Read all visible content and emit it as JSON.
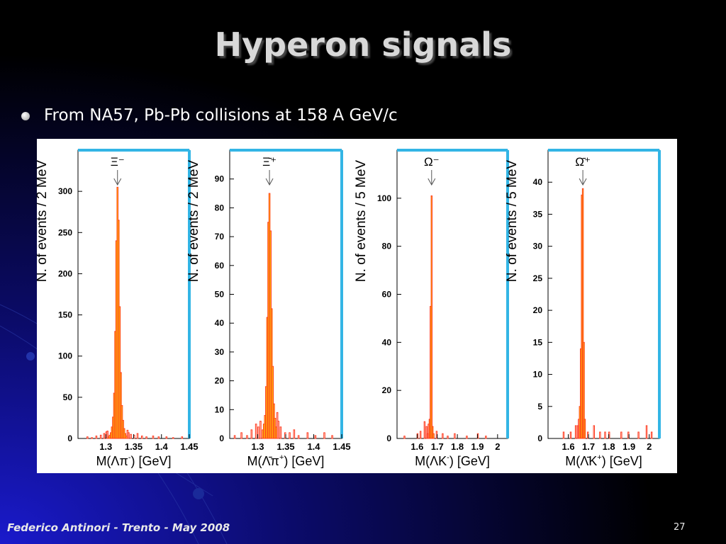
{
  "slide": {
    "title": "Hyperon signals",
    "bullet": "From NA57, Pb-Pb collisions at 158 A GeV/c",
    "footer": "Federico Antinori - Trento - May 2008",
    "page_number": "27"
  },
  "colors": {
    "background_top": "#000000",
    "background_glow": "#1a1acc",
    "histogram_fill": "#ffff00",
    "histogram_line": "#ff3b1f",
    "frame_accent": "#33b5e5"
  },
  "chart_data": [
    {
      "type": "histogram",
      "peak_label": "Ξ⁻",
      "ylabel": "N. of events / 2 MeV",
      "xlabel_parts": [
        "M(Λπ",
        "-",
        ")   [GeV]"
      ],
      "xlim": [
        1.25,
        1.45
      ],
      "ylim": [
        0,
        350
      ],
      "xticks": [
        1.3,
        1.35,
        1.4,
        1.45
      ],
      "yticks": [
        0,
        50,
        100,
        150,
        200,
        250,
        300
      ],
      "bin_width": 0.002,
      "peak_arrow_x": 1.321,
      "signal": [
        [
          1.305,
          2
        ],
        [
          1.307,
          4
        ],
        [
          1.309,
          7
        ],
        [
          1.311,
          14
        ],
        [
          1.313,
          26
        ],
        [
          1.315,
          55
        ],
        [
          1.317,
          130
        ],
        [
          1.319,
          240
        ],
        [
          1.321,
          305
        ],
        [
          1.323,
          265
        ],
        [
          1.325,
          160
        ],
        [
          1.327,
          80
        ],
        [
          1.329,
          40
        ],
        [
          1.331,
          22
        ],
        [
          1.333,
          12
        ],
        [
          1.335,
          6
        ],
        [
          1.337,
          3
        ]
      ],
      "background": [
        [
          1.267,
          2
        ],
        [
          1.275,
          1
        ],
        [
          1.283,
          3
        ],
        [
          1.291,
          4
        ],
        [
          1.297,
          6
        ],
        [
          1.301,
          8
        ],
        [
          1.303,
          9
        ],
        [
          1.339,
          10
        ],
        [
          1.341,
          7
        ],
        [
          1.345,
          5
        ],
        [
          1.351,
          4
        ],
        [
          1.357,
          6
        ],
        [
          1.365,
          3
        ],
        [
          1.373,
          2
        ],
        [
          1.385,
          3
        ],
        [
          1.395,
          2
        ],
        [
          1.409,
          2
        ],
        [
          1.421,
          1
        ],
        [
          1.437,
          2
        ]
      ]
    },
    {
      "type": "histogram",
      "peak_label": "Ξ̄⁺",
      "ylabel": "N. of events / 2 MeV",
      "xlabel_parts": [
        "M(Λ̄π",
        "+",
        ")   [GeV]"
      ],
      "xlim": [
        1.25,
        1.45
      ],
      "ylim": [
        0,
        100
      ],
      "xticks": [
        1.3,
        1.35,
        1.4,
        1.45
      ],
      "yticks": [
        0,
        10,
        20,
        30,
        40,
        50,
        60,
        70,
        80,
        90
      ],
      "bin_width": 0.002,
      "peak_arrow_x": 1.321,
      "signal": [
        [
          1.309,
          3
        ],
        [
          1.311,
          5
        ],
        [
          1.313,
          8
        ],
        [
          1.315,
          18
        ],
        [
          1.317,
          42
        ],
        [
          1.319,
          75
        ],
        [
          1.321,
          85
        ],
        [
          1.323,
          72
        ],
        [
          1.325,
          45
        ],
        [
          1.327,
          25
        ],
        [
          1.329,
          12
        ],
        [
          1.331,
          7
        ],
        [
          1.333,
          4
        ]
      ],
      "background": [
        [
          1.259,
          1
        ],
        [
          1.271,
          2
        ],
        [
          1.281,
          1
        ],
        [
          1.289,
          3
        ],
        [
          1.297,
          5
        ],
        [
          1.301,
          4
        ],
        [
          1.305,
          6
        ],
        [
          1.335,
          9
        ],
        [
          1.337,
          6
        ],
        [
          1.341,
          4
        ],
        [
          1.349,
          2
        ],
        [
          1.357,
          2
        ],
        [
          1.365,
          3
        ],
        [
          1.373,
          1
        ],
        [
          1.389,
          2
        ],
        [
          1.403,
          1
        ],
        [
          1.419,
          2
        ],
        [
          1.433,
          1
        ]
      ]
    },
    {
      "type": "histogram",
      "peak_label": "Ω⁻",
      "ylabel": "N. of events / 5 MeV",
      "xlabel_parts": [
        "M(ΛK",
        "-",
        ")   [GeV]"
      ],
      "xlim": [
        1.5,
        2.05
      ],
      "ylim": [
        0,
        120
      ],
      "xticks": [
        1.6,
        1.7,
        1.8,
        1.9,
        2
      ],
      "yticks": [
        0,
        20,
        40,
        60,
        80,
        100
      ],
      "bin_width": 0.005,
      "peak_arrow_x": 1.672,
      "signal": [
        [
          1.662,
          8
        ],
        [
          1.667,
          55
        ],
        [
          1.672,
          101
        ],
        [
          1.677,
          5
        ],
        [
          1.682,
          2
        ]
      ],
      "background": [
        [
          1.537,
          1
        ],
        [
          1.602,
          2
        ],
        [
          1.617,
          3
        ],
        [
          1.637,
          7
        ],
        [
          1.647,
          5
        ],
        [
          1.652,
          2
        ],
        [
          1.657,
          6
        ],
        [
          1.697,
          3
        ],
        [
          1.727,
          2
        ],
        [
          1.752,
          1
        ],
        [
          1.787,
          2
        ],
        [
          1.847,
          1
        ],
        [
          1.902,
          2
        ],
        [
          1.942,
          1
        ]
      ]
    },
    {
      "type": "histogram",
      "peak_label": "Ω̄⁺",
      "ylabel": "N. of events / 5 MeV",
      "xlabel_parts": [
        "M(Λ̄K",
        "+",
        ")   [GeV]"
      ],
      "xlim": [
        1.5,
        2.05
      ],
      "ylim": [
        0,
        45
      ],
      "xticks": [
        1.6,
        1.7,
        1.8,
        1.9,
        2
      ],
      "yticks": [
        0,
        5,
        10,
        15,
        20,
        25,
        30,
        35,
        40
      ],
      "bin_width": 0.005,
      "peak_arrow_x": 1.672,
      "signal": [
        [
          1.657,
          5
        ],
        [
          1.662,
          14
        ],
        [
          1.667,
          38
        ],
        [
          1.672,
          39
        ],
        [
          1.677,
          15
        ],
        [
          1.682,
          3
        ]
      ],
      "background": [
        [
          1.577,
          1
        ],
        [
          1.612,
          1
        ],
        [
          1.637,
          2
        ],
        [
          1.647,
          2
        ],
        [
          1.652,
          3
        ],
        [
          1.697,
          1
        ],
        [
          1.727,
          2
        ],
        [
          1.757,
          1
        ],
        [
          1.782,
          1
        ],
        [
          1.802,
          1
        ],
        [
          1.862,
          1
        ],
        [
          1.897,
          1
        ],
        [
          1.947,
          1
        ],
        [
          1.987,
          2
        ],
        [
          2.012,
          1
        ]
      ]
    }
  ]
}
